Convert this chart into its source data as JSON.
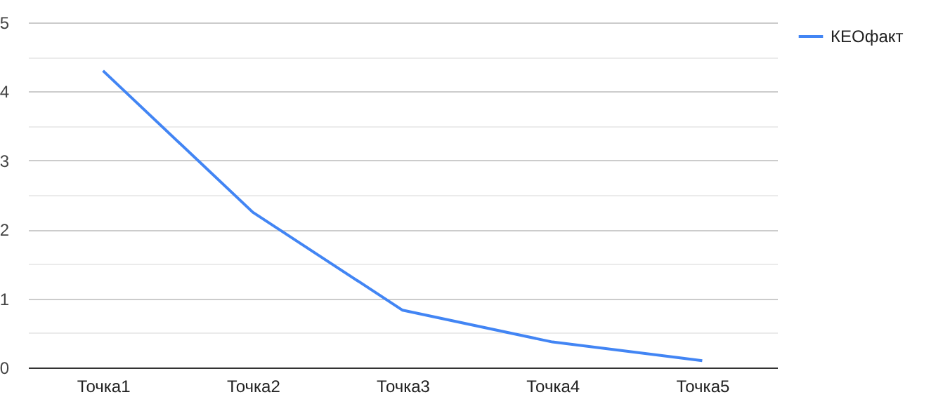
{
  "chart_data": {
    "type": "line",
    "categories": [
      "Точка1",
      "Точка2",
      "Точка3",
      "Точка4",
      "Точка5"
    ],
    "series": [
      {
        "name": "КЕОфакт",
        "color": "#4285f4",
        "values": [
          4.3,
          2.25,
          0.83,
          0.37,
          0.1
        ]
      }
    ],
    "ylim": [
      0,
      5
    ],
    "yticks": [
      0,
      {
        "value": 0.5,
        "label": null
      },
      1,
      {
        "value": 1.5,
        "label": null
      },
      2,
      {
        "value": 2.5,
        "label": null
      },
      3,
      {
        "value": 3.5,
        "label": null
      },
      4,
      {
        "value": 4.5,
        "label": null
      },
      5
    ],
    "grid": "y",
    "legend": "top right",
    "marker": "none",
    "line_style": "solid"
  }
}
